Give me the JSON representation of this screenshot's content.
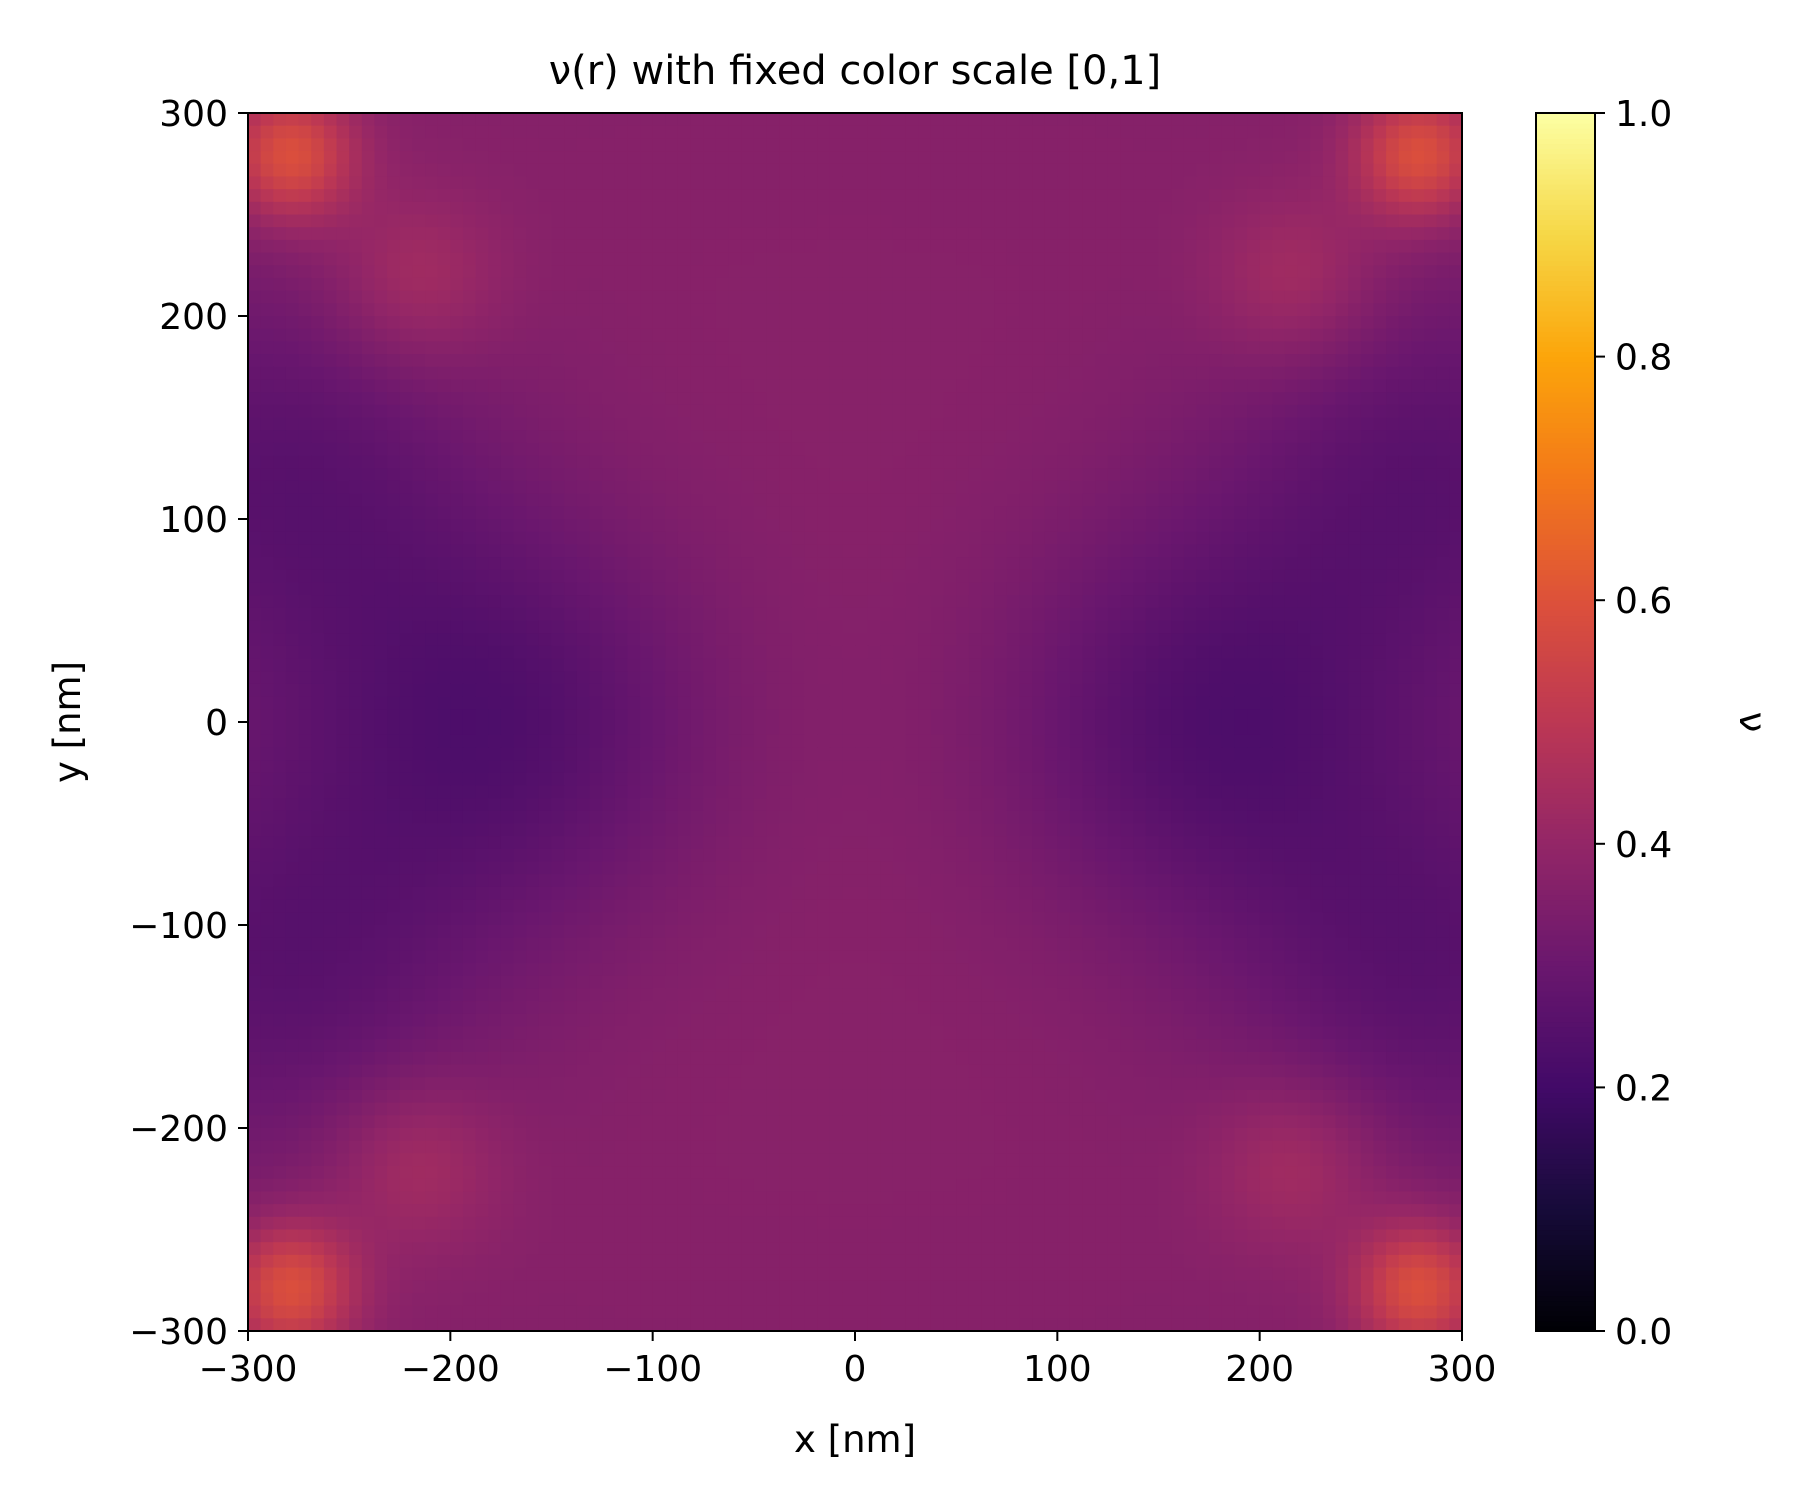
{
  "chart_data": {
    "type": "heatmap",
    "title": "ν(r) with fixed color scale [0,1]",
    "xlabel": "x [nm]",
    "ylabel": "y [nm]",
    "colorbar_label": "ν",
    "colormap": "inferno",
    "xlim": [
      -300,
      300
    ],
    "ylim": [
      -300,
      300
    ],
    "clim": [
      0,
      1
    ],
    "x_ticks": [
      -300,
      -200,
      -100,
      0,
      100,
      200,
      300
    ],
    "x_tick_labels": [
      "−300",
      "−200",
      "−100",
      "0",
      "100",
      "200",
      "300"
    ],
    "y_ticks": [
      -300,
      -200,
      -100,
      0,
      100,
      200,
      300
    ],
    "y_tick_labels": [
      "−300",
      "−200",
      "−100",
      "0",
      "100",
      "200",
      "300"
    ],
    "colorbar_ticks": [
      0.0,
      0.2,
      0.4,
      0.6,
      0.8,
      1.0
    ],
    "colorbar_tick_labels": [
      "0.0",
      "0.2",
      "0.4",
      "0.6",
      "0.8",
      "1.0"
    ],
    "grid": false,
    "field_samples": [
      {
        "x": 0,
        "y": 0,
        "value": 0.37
      },
      {
        "x": 0,
        "y": 200,
        "value": 0.36
      },
      {
        "x": 0,
        "y": 300,
        "value": 0.35
      },
      {
        "x": -170,
        "y": 0,
        "value": 0.19
      },
      {
        "x": 170,
        "y": 0,
        "value": 0.19
      },
      {
        "x": -280,
        "y": 140,
        "value": 0.18
      },
      {
        "x": 280,
        "y": -140,
        "value": 0.18
      },
      {
        "x": -210,
        "y": 240,
        "value": 0.45
      },
      {
        "x": 210,
        "y": -240,
        "value": 0.45
      },
      {
        "x": -280,
        "y": 285,
        "value": 0.58
      },
      {
        "x": 280,
        "y": 285,
        "value": 0.58
      },
      {
        "x": -280,
        "y": -285,
        "value": 0.58
      },
      {
        "x": 280,
        "y": -285,
        "value": 0.58
      }
    ]
  }
}
